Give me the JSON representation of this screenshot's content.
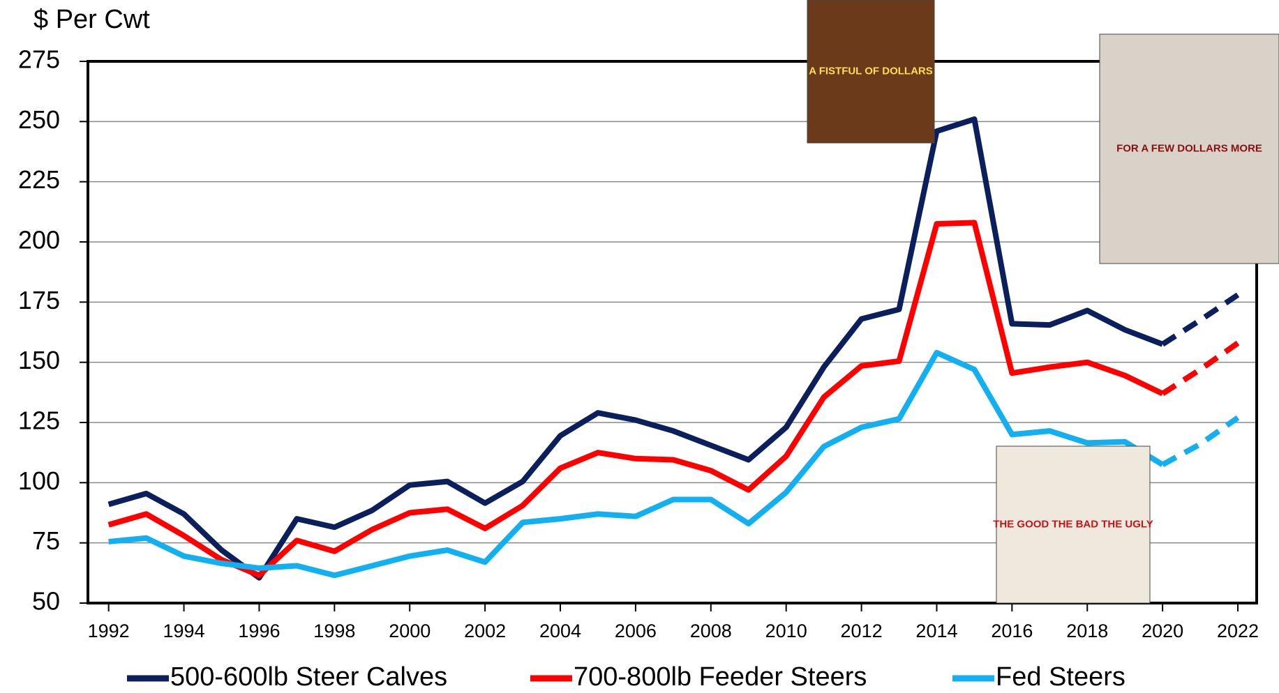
{
  "chart_data": {
    "type": "line",
    "y_label": "$ Per Cwt",
    "x": [
      1992,
      1993,
      1994,
      1995,
      1996,
      1997,
      1998,
      1999,
      2000,
      2001,
      2002,
      2003,
      2004,
      2005,
      2006,
      2007,
      2008,
      2009,
      2010,
      2011,
      2012,
      2013,
      2014,
      2015,
      2016,
      2017,
      2018,
      2019,
      2020,
      2021,
      2022
    ],
    "series": [
      {
        "name": "500-600lb Steer Calves",
        "color": "#0b1f5c",
        "values": [
          91,
          95.5,
          87,
          72,
          60.5,
          85,
          81.5,
          88.5,
          99,
          100.5,
          91.5,
          100.5,
          119.5,
          129,
          126,
          121.5,
          115.5,
          109.5,
          123,
          148,
          168,
          172,
          246,
          251,
          166,
          165.5,
          171.5,
          163.5,
          157.5,
          167.5,
          178
        ]
      },
      {
        "name": "700-800lb Feeder Steers",
        "color": "#ff0000",
        "values": [
          82.5,
          87,
          78,
          68,
          61.5,
          76,
          71.5,
          80.5,
          87.5,
          89,
          81,
          90.5,
          106,
          112.5,
          110,
          109.5,
          105,
          97,
          111,
          135.5,
          148.5,
          150.5,
          207.5,
          208,
          145.5,
          148,
          150,
          144.5,
          137,
          147,
          158
        ]
      },
      {
        "name": "Fed Steers",
        "color": "#12b0f0",
        "values": [
          75.5,
          77,
          69.5,
          66.5,
          64.5,
          65.5,
          61.5,
          65.5,
          69.5,
          72,
          67,
          83.5,
          85,
          87,
          86,
          93,
          93,
          83,
          96,
          115,
          123,
          126.5,
          154,
          147,
          120,
          121.5,
          116.5,
          117,
          107.5,
          116,
          127
        ]
      }
    ],
    "forecast_from": 2020,
    "xlim": [
      1991.45,
      2022.5
    ],
    "xticks": [
      1992,
      1994,
      1996,
      1998,
      2000,
      2002,
      2004,
      2006,
      2008,
      2010,
      2012,
      2014,
      2016,
      2018,
      2020,
      2022
    ],
    "ylim": [
      50,
      275
    ],
    "yticks": [
      50,
      75,
      100,
      125,
      150,
      175,
      200,
      225,
      250,
      275
    ],
    "grid": true,
    "legend": "bottom",
    "annotations": [
      "A FISTFUL OF DOLLARS",
      "FOR A FEW DOLLARS MORE",
      "THE GOOD THE BAD THE UGLY"
    ]
  }
}
